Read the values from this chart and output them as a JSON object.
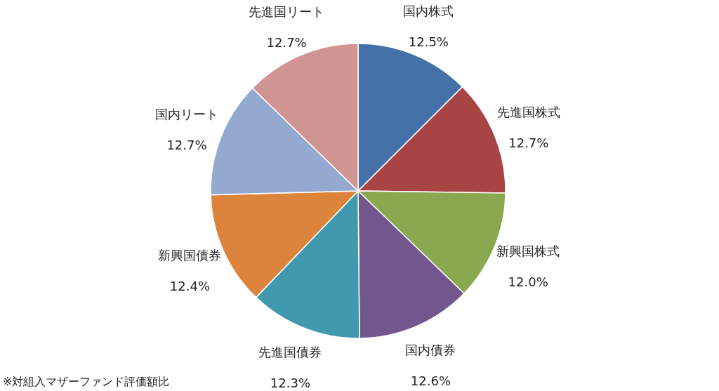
{
  "chart_data": {
    "type": "pie",
    "categories": [
      "国内株式",
      "先進国株式",
      "新興国株式",
      "国内債券",
      "先進国債券",
      "新興国債券",
      "国内リート",
      "先進国リート"
    ],
    "values": [
      12.5,
      12.7,
      12.0,
      12.6,
      12.3,
      12.4,
      12.7,
      12.7
    ],
    "value_labels": [
      "12.5%",
      "12.7%",
      "12.0%",
      "12.6%",
      "12.3%",
      "12.4%",
      "12.7%",
      "12.7%"
    ],
    "colors": [
      "#4472a8",
      "#a94444",
      "#8aa84f",
      "#72578f",
      "#4199b0",
      "#dc833c",
      "#93a9d0",
      "#d09493"
    ],
    "annotations": [
      "※対組入マザーファンド評価額比"
    ]
  }
}
